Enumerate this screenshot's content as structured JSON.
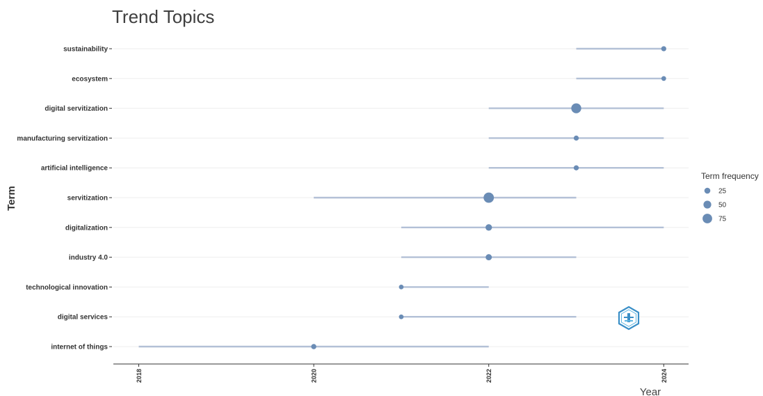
{
  "chart_data": {
    "type": "scatter",
    "title": "Trend Topics",
    "xlabel": "Year",
    "ylabel": "Term",
    "xlim": [
      2017.85,
      2024.3
    ],
    "x_ticks": [
      "2018",
      "2020",
      "2022",
      "2024"
    ],
    "grid": true,
    "legend_position": "right",
    "legend_title": "Term frequency",
    "legend": [
      {
        "label": "25",
        "value": 25
      },
      {
        "label": "50",
        "value": 50
      },
      {
        "label": "75",
        "value": 75
      }
    ],
    "colors": {
      "point": "#6a8cb5",
      "range": "#b3c0d6",
      "grid": "#eeeeee",
      "axis": "#333333"
    },
    "terms": [
      {
        "term": "sustainability",
        "start": 2023,
        "end": 2024,
        "median": 2024,
        "frequency": 12
      },
      {
        "term": "ecosystem",
        "start": 2023,
        "end": 2024,
        "median": 2024,
        "frequency": 8
      },
      {
        "term": "digital servitization",
        "start": 2022,
        "end": 2024,
        "median": 2023,
        "frequency": 80
      },
      {
        "term": "manufacturing servitization",
        "start": 2022,
        "end": 2024,
        "median": 2023,
        "frequency": 12
      },
      {
        "term": "artificial intelligence",
        "start": 2022,
        "end": 2024,
        "median": 2023,
        "frequency": 13
      },
      {
        "term": "servitization",
        "start": 2020,
        "end": 2023,
        "median": 2022,
        "frequency": 85
      },
      {
        "term": "digitalization",
        "start": 2021,
        "end": 2024,
        "median": 2022,
        "frequency": 32
      },
      {
        "term": "industry 4.0",
        "start": 2021,
        "end": 2023,
        "median": 2022,
        "frequency": 28
      },
      {
        "term": "technological innovation",
        "start": 2021,
        "end": 2022,
        "median": 2021,
        "frequency": 7
      },
      {
        "term": "digital services",
        "start": 2021,
        "end": 2023,
        "median": 2021,
        "frequency": 7
      },
      {
        "term": "internet of things",
        "start": 2018,
        "end": 2022,
        "median": 2020,
        "frequency": 14
      }
    ]
  },
  "watermark": {
    "icon": "bibliometrix-hexagon-logo"
  }
}
